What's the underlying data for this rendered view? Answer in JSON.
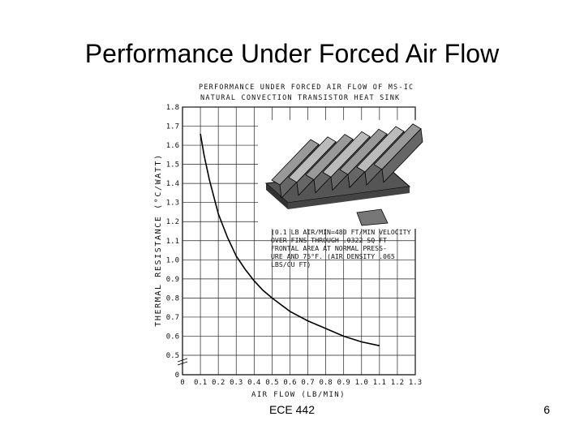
{
  "slide": {
    "title": "Performance Under Forced Air Flow",
    "footer": "ECE 442",
    "page_number": "6"
  },
  "chart_data": {
    "type": "line",
    "title": "PERFORMANCE UNDER FORCED AIR FLOW OF MS-IC NATURAL CONVECTION TRANSISTOR HEAT SINK",
    "title_lines": [
      "PERFORMANCE UNDER FORCED AIR FLOW OF MS-IC",
      "NATURAL CONVECTION TRANSISTOR HEAT SINK"
    ],
    "xlabel": "AIR FLOW (LB/MIN)",
    "ylabel": "THERMAL RESISTANCE (°C/WATT)",
    "x_ticks": [
      "0",
      "0.1",
      "0.2",
      "0.3",
      "0.4",
      "0.5",
      "0.6",
      "0.7",
      "0.8",
      "0.9",
      "1.0",
      "1.1",
      "1.2",
      "1.3"
    ],
    "y_ticks": [
      "0",
      "0.5",
      "0.6",
      "0.7",
      "0.8",
      "0.9",
      "1.0",
      "1.1",
      "1.2",
      "1.3",
      "1.4",
      "1.5",
      "1.6",
      "1.7",
      "1.8"
    ],
    "xlim": [
      0,
      1.3
    ],
    "ylim": [
      0,
      1.8
    ],
    "y_axis_break": true,
    "grid": true,
    "series": [
      {
        "x": [
          0.1,
          0.12,
          0.15,
          0.2,
          0.25,
          0.3,
          0.35,
          0.4,
          0.45,
          0.5,
          0.6,
          0.7,
          0.8,
          0.9,
          1.0,
          1.1
        ],
        "y": [
          1.66,
          1.55,
          1.42,
          1.24,
          1.12,
          1.02,
          0.95,
          0.89,
          0.84,
          0.8,
          0.73,
          0.68,
          0.64,
          0.6,
          0.57,
          0.55
        ]
      }
    ],
    "annotation_lines": [
      "(0.1 LB AIR/MIN=480 FT/MIN VELOCITY",
      "OVER FINS THROUGH .0322 SQ FT",
      "FRONTAL AREA AT NORMAL PRESS-",
      "URE AND 75°F. (AIR DENSITY .065",
      "LBS/CU FT)"
    ],
    "inset_image": "heat-sink-photo"
  }
}
